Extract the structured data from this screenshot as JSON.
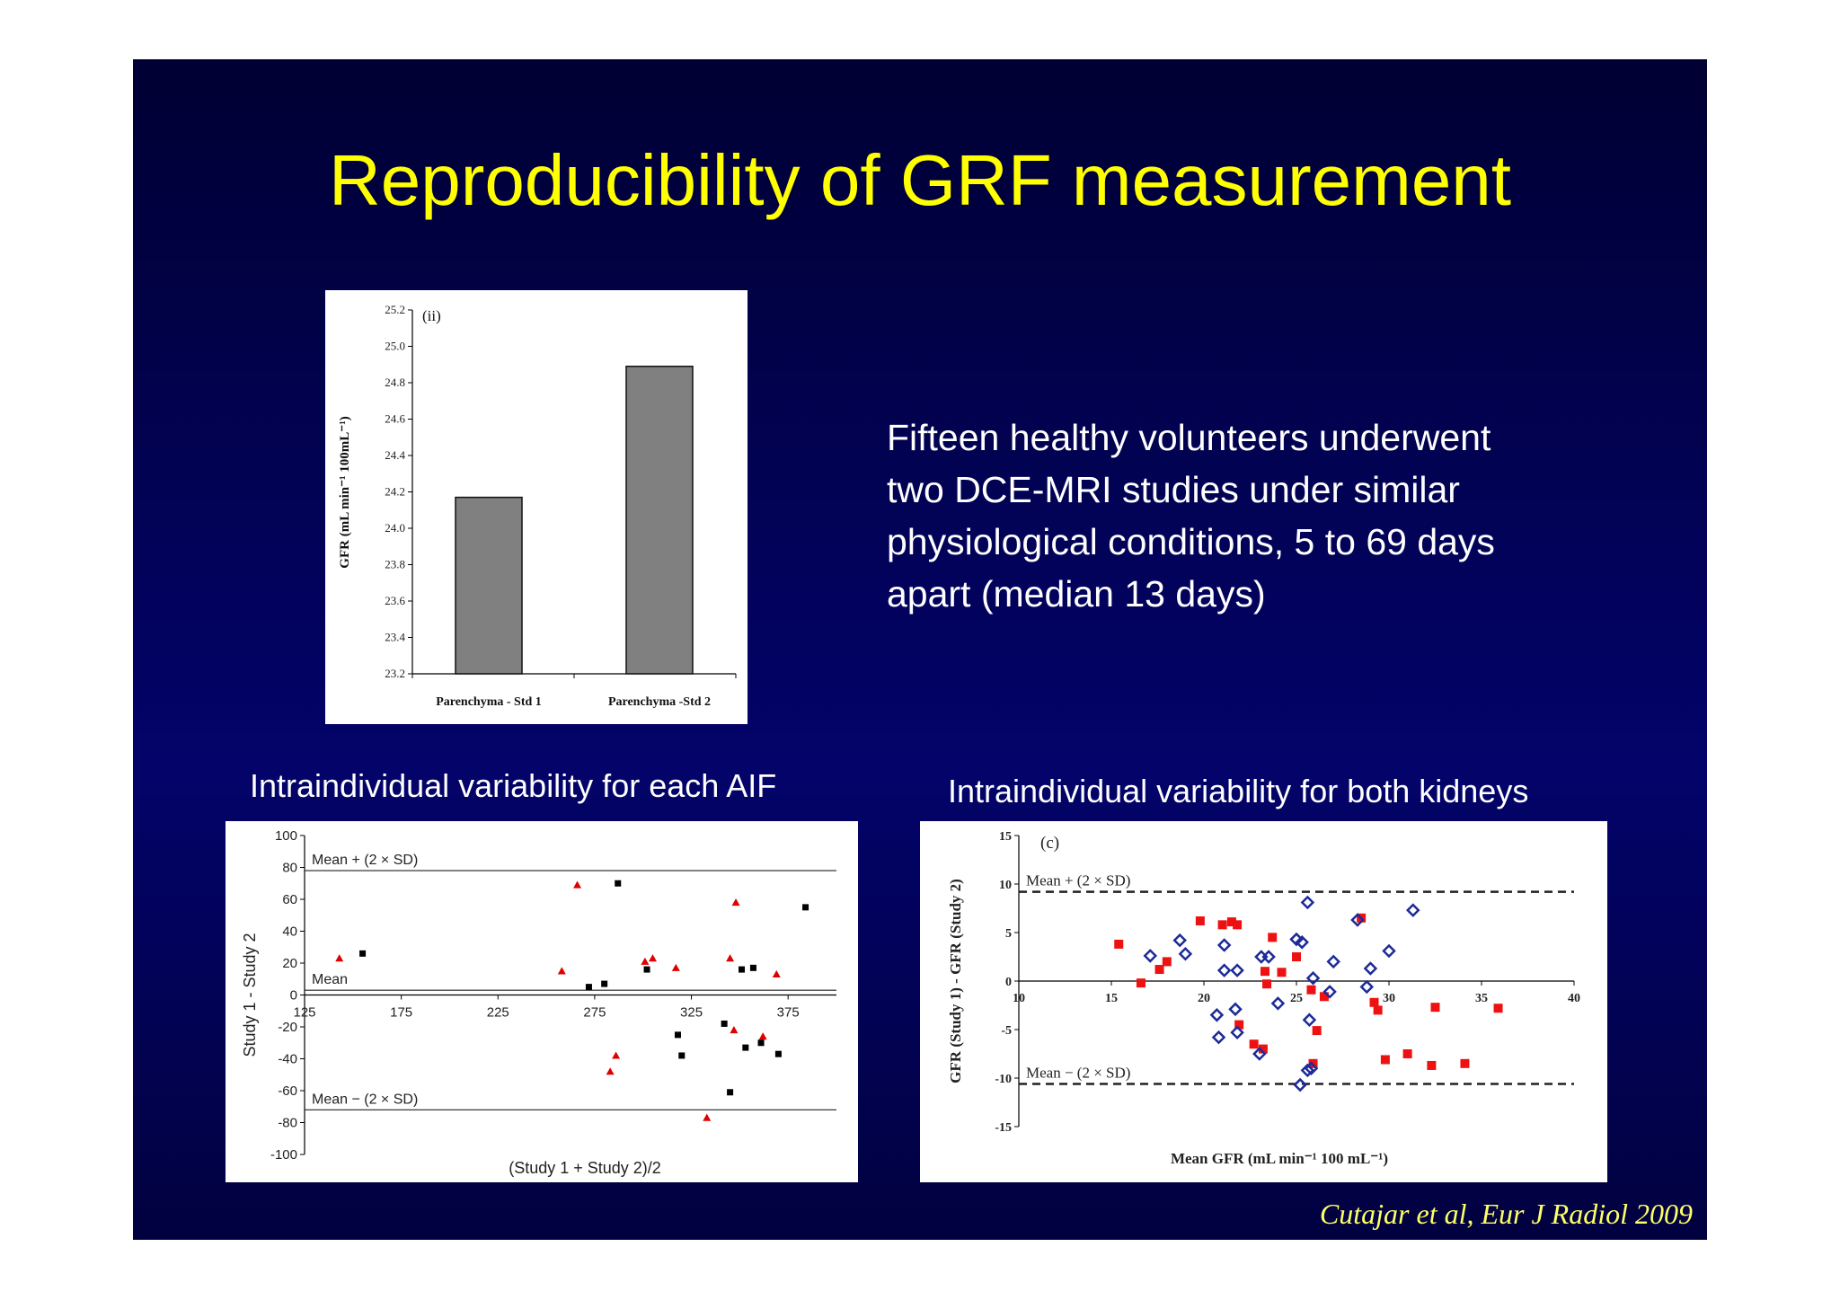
{
  "slide": {
    "title": "Reproducibility of GRF measurement",
    "description_lines": [
      "Fifteen healthy volunteers underwent",
      "two DCE-MRI studies under similar",
      "physiological conditions, 5 to 69 days",
      "apart (median 13 days)"
    ],
    "caption_left": "Intraindividual variability for each AIF",
    "caption_right": "Intraindividual variability for both kidneys",
    "citation": "Cutajar et al, Eur J Radiol 2009",
    "colors": {
      "title": "#ffff00",
      "citation": "#ffff66",
      "background": "#03036a"
    }
  },
  "chart_data": [
    {
      "type": "bar",
      "panel_label": "(ii)",
      "categories": [
        "Parenchyma - Std 1",
        "Parenchyma -Std 2"
      ],
      "values": [
        24.17,
        24.89
      ],
      "ylabel": "GFR (mL min⁻¹ 100mL⁻¹)",
      "ylim": [
        23.2,
        25.2
      ],
      "yticks": [
        "23.2",
        "23.4",
        "23.6",
        "23.8",
        "24.0",
        "24.2",
        "24.4",
        "24.6",
        "24.8",
        "25.0",
        "25.2"
      ],
      "bar_color": "#808080"
    },
    {
      "type": "scatter",
      "xlabel": "(Study 1 + Study 2)/2",
      "ylabel": "Study 1 - Study 2",
      "xlim": [
        125,
        400
      ],
      "ylim": [
        -100,
        100
      ],
      "xticks": [
        "125",
        "175",
        "225",
        "275",
        "325",
        "375"
      ],
      "yticks": [
        "100",
        "80",
        "60",
        "40",
        "20",
        "0",
        "-20",
        "-40",
        "-60",
        "-80",
        "-100"
      ],
      "lines": [
        {
          "label": "Mean + (2 × SD)",
          "y": 78
        },
        {
          "label": "Mean",
          "y": 3
        },
        {
          "label": "Mean − (2 × SD)",
          "y": -72
        }
      ],
      "series": [
        {
          "marker": "triangle",
          "color": "#dd0000",
          "points": [
            [
              143,
              23
            ],
            [
              258,
              15
            ],
            [
              266,
              69
            ],
            [
              283,
              -48
            ],
            [
              286,
              -38
            ],
            [
              301,
              21
            ],
            [
              305,
              23
            ],
            [
              317,
              17
            ],
            [
              333,
              -77
            ],
            [
              345,
              23
            ],
            [
              347,
              -22
            ],
            [
              348,
              58
            ],
            [
              362,
              -26
            ],
            [
              369,
              13
            ]
          ]
        },
        {
          "marker": "square",
          "color": "#000000",
          "points": [
            [
              155,
              26
            ],
            [
              272,
              5
            ],
            [
              280,
              7
            ],
            [
              287,
              70
            ],
            [
              302,
              16
            ],
            [
              318,
              -25
            ],
            [
              320,
              -38
            ],
            [
              342,
              -18
            ],
            [
              345,
              -61
            ],
            [
              351,
              16
            ],
            [
              353,
              -33
            ],
            [
              357,
              17
            ],
            [
              361,
              -30
            ],
            [
              370,
              -37
            ],
            [
              384,
              55
            ]
          ]
        }
      ]
    },
    {
      "type": "scatter",
      "panel_label": "(c)",
      "xlabel": "Mean GFR (mL min⁻¹ 100 mL⁻¹)",
      "ylabel": "GFR (Study 1) - GFR (Study 2)",
      "xlim": [
        10,
        40
      ],
      "ylim": [
        -15,
        15
      ],
      "xticks": [
        "10",
        "15",
        "20",
        "25",
        "30",
        "35",
        "40"
      ],
      "yticks": [
        "15",
        "10",
        "5",
        "0",
        "-5",
        "-10",
        "-15"
      ],
      "lines": [
        {
          "label": "Mean + (2 × SD)",
          "y": 9.2,
          "style": "dashed"
        },
        {
          "label": "",
          "y": 0,
          "style": "solid"
        },
        {
          "label": "Mean − (2 × SD)",
          "y": -10.6,
          "style": "dashed"
        }
      ],
      "series": [
        {
          "marker": "square",
          "color": "#ee1111",
          "points": [
            [
              15.4,
              3.8
            ],
            [
              16.6,
              -0.2
            ],
            [
              17.6,
              1.2
            ],
            [
              18.0,
              2.0
            ],
            [
              19.8,
              6.2
            ],
            [
              21.0,
              5.8
            ],
            [
              21.5,
              6.1
            ],
            [
              21.8,
              5.8
            ],
            [
              21.9,
              -4.5
            ],
            [
              22.7,
              -6.5
            ],
            [
              23.2,
              -7.0
            ],
            [
              23.3,
              1.0
            ],
            [
              23.4,
              -0.3
            ],
            [
              23.7,
              4.5
            ],
            [
              24.2,
              0.9
            ],
            [
              25.0,
              2.5
            ],
            [
              25.8,
              -0.9
            ],
            [
              25.9,
              -8.5
            ],
            [
              26.1,
              -5.1
            ],
            [
              26.5,
              -1.6
            ],
            [
              28.5,
              6.5
            ],
            [
              29.2,
              -2.2
            ],
            [
              29.4,
              -3.0
            ],
            [
              29.8,
              -8.1
            ],
            [
              31.0,
              -7.5
            ],
            [
              32.3,
              -8.7
            ],
            [
              32.5,
              -2.7
            ],
            [
              34.1,
              -8.5
            ],
            [
              35.9,
              -2.8
            ]
          ]
        },
        {
          "marker": "diamond",
          "color": "#1c2a9a",
          "points": [
            [
              17.1,
              2.6
            ],
            [
              18.7,
              4.2
            ],
            [
              19.0,
              2.8
            ],
            [
              20.7,
              -3.5
            ],
            [
              20.8,
              -5.8
            ],
            [
              21.1,
              3.7
            ],
            [
              21.1,
              1.1
            ],
            [
              21.7,
              -2.9
            ],
            [
              21.8,
              1.1
            ],
            [
              21.8,
              -5.3
            ],
            [
              23.0,
              -7.5
            ],
            [
              23.1,
              2.5
            ],
            [
              23.5,
              2.5
            ],
            [
              24.0,
              -2.3
            ],
            [
              25.0,
              4.3
            ],
            [
              25.2,
              -10.7
            ],
            [
              25.3,
              4.0
            ],
            [
              25.6,
              8.1
            ],
            [
              25.6,
              -9.2
            ],
            [
              25.7,
              -4.0
            ],
            [
              25.8,
              -9.0
            ],
            [
              25.9,
              0.3
            ],
            [
              26.8,
              -1.1
            ],
            [
              27.0,
              2.0
            ],
            [
              28.3,
              6.3
            ],
            [
              28.8,
              -0.6
            ],
            [
              29.0,
              1.3
            ],
            [
              30.0,
              3.1
            ],
            [
              31.3,
              7.3
            ]
          ]
        }
      ]
    }
  ]
}
